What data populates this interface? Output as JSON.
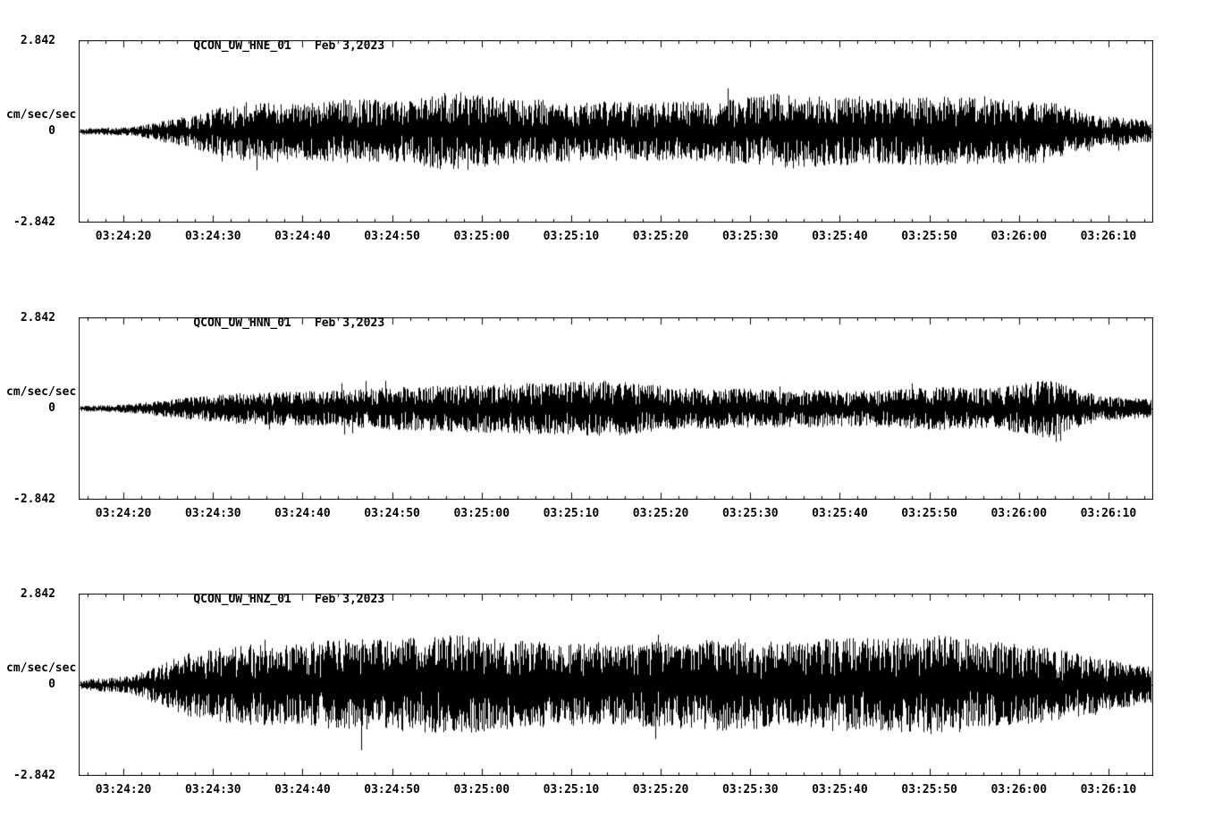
{
  "page": {
    "background": "#ffffff",
    "foreground": "#000000",
    "trace_color": "#000000"
  },
  "chart_data": [
    {
      "type": "line",
      "kind": "seismogram-waveform",
      "title": "QCON_UW_HNE_01",
      "date": "Feb 3,2023",
      "ylabel": "cm/sec/sec",
      "ylim": [
        -2.842,
        2.842
      ],
      "ytick_labels": {
        "max": "2.842",
        "zero": "0",
        "min": "-2.842"
      },
      "window_seconds": 120,
      "x_start": "03:24:15",
      "x_end": "03:26:15",
      "xtick_labels": [
        "03:24:20",
        "03:24:30",
        "03:24:40",
        "03:24:50",
        "03:25:00",
        "03:25:10",
        "03:25:20",
        "03:25:30",
        "03:25:40",
        "03:25:50",
        "03:26:00",
        "03:26:10"
      ],
      "xtick_offsets_s": [
        5,
        15,
        25,
        35,
        45,
        55,
        65,
        75,
        85,
        95,
        105,
        115
      ],
      "grid": false,
      "legend": "none",
      "envelope_t": [
        0,
        0.05,
        0.1,
        0.15,
        0.2,
        0.25,
        0.3,
        0.35,
        0.4,
        0.45,
        0.5,
        0.55,
        0.6,
        0.65,
        0.7,
        0.75,
        0.8,
        0.85,
        0.9,
        0.95,
        1
      ],
      "envelope_a": [
        0.1,
        0.14,
        0.5,
        0.95,
        0.9,
        1.05,
        1.0,
        1.3,
        1.05,
        1.0,
        0.95,
        0.95,
        1.0,
        1.25,
        1.1,
        1.05,
        1.15,
        1.05,
        1.0,
        0.5,
        0.35
      ],
      "seed": 1337
    },
    {
      "type": "line",
      "kind": "seismogram-waveform",
      "title": "QCON_UW_HNN_01",
      "date": "Feb 3,2023",
      "ylabel": "cm/sec/sec",
      "ylim": [
        -2.842,
        2.842
      ],
      "ytick_labels": {
        "max": "2.842",
        "zero": "0",
        "min": "-2.842"
      },
      "window_seconds": 120,
      "x_start": "03:24:15",
      "x_end": "03:26:15",
      "xtick_labels": [
        "03:24:20",
        "03:24:30",
        "03:24:40",
        "03:24:50",
        "03:25:00",
        "03:25:10",
        "03:25:20",
        "03:25:30",
        "03:25:40",
        "03:25:50",
        "03:26:00",
        "03:26:10"
      ],
      "xtick_offsets_s": [
        5,
        15,
        25,
        35,
        45,
        55,
        65,
        75,
        85,
        95,
        105,
        115
      ],
      "grid": false,
      "legend": "none",
      "envelope_t": [
        0,
        0.05,
        0.1,
        0.15,
        0.2,
        0.25,
        0.3,
        0.35,
        0.4,
        0.45,
        0.5,
        0.55,
        0.6,
        0.65,
        0.7,
        0.75,
        0.8,
        0.85,
        0.9,
        0.95,
        1
      ],
      "envelope_a": [
        0.08,
        0.15,
        0.35,
        0.5,
        0.55,
        0.6,
        0.7,
        0.75,
        0.8,
        0.85,
        0.9,
        0.7,
        0.65,
        0.6,
        0.6,
        0.6,
        0.7,
        0.65,
        0.95,
        0.4,
        0.3
      ],
      "seed": 4242
    },
    {
      "type": "line",
      "kind": "seismogram-waveform",
      "title": "QCON_UW_HNZ_01",
      "date": "Feb 3,2023",
      "ylabel": "cm/sec/sec",
      "ylim": [
        -2.842,
        2.842
      ],
      "ytick_labels": {
        "max": "2.842",
        "zero": "0",
        "min": "-2.842"
      },
      "window_seconds": 120,
      "x_start": "03:24:15",
      "x_end": "03:26:15",
      "xtick_labels": [
        "03:24:20",
        "03:24:30",
        "03:24:40",
        "03:24:50",
        "03:25:00",
        "03:25:10",
        "03:25:20",
        "03:25:30",
        "03:25:40",
        "03:25:50",
        "03:26:00",
        "03:26:10"
      ],
      "xtick_offsets_s": [
        5,
        15,
        25,
        35,
        45,
        55,
        65,
        75,
        85,
        95,
        105,
        115
      ],
      "grid": false,
      "legend": "none",
      "envelope_t": [
        0,
        0.05,
        0.1,
        0.15,
        0.2,
        0.25,
        0.3,
        0.35,
        0.4,
        0.45,
        0.5,
        0.55,
        0.6,
        0.65,
        0.7,
        0.75,
        0.8,
        0.85,
        0.9,
        0.95,
        1
      ],
      "envelope_a": [
        0.15,
        0.3,
        1.0,
        1.3,
        1.3,
        1.5,
        1.5,
        1.6,
        1.45,
        1.35,
        1.3,
        1.4,
        1.5,
        1.4,
        1.5,
        1.5,
        1.6,
        1.4,
        1.2,
        0.9,
        0.55
      ],
      "seed": 9001
    }
  ]
}
